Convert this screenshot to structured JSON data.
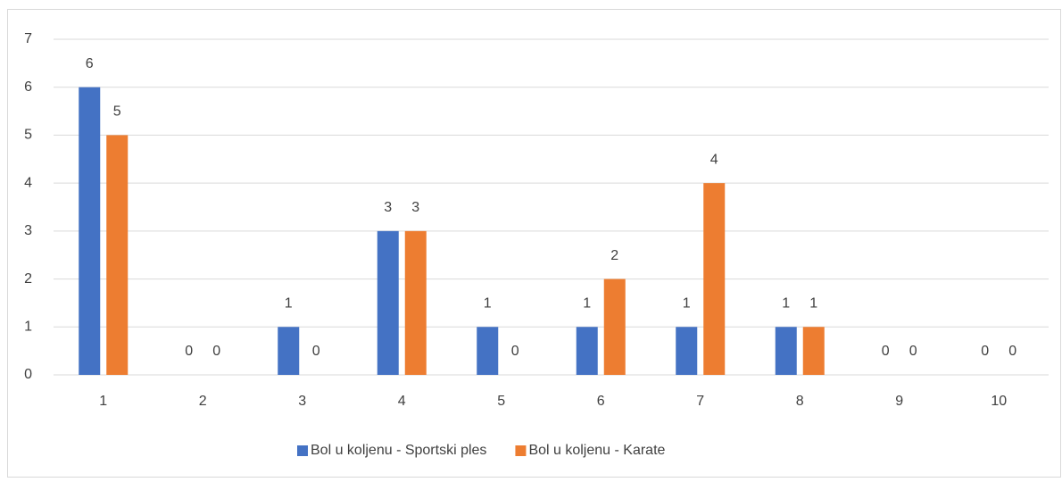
{
  "chart_data": {
    "type": "bar",
    "categories": [
      "1",
      "2",
      "3",
      "4",
      "5",
      "6",
      "7",
      "8",
      "9",
      "10"
    ],
    "series": [
      {
        "name": "Bol u koljenu - Sportski ples",
        "color": "#4472c4",
        "values": [
          6,
          0,
          1,
          3,
          1,
          1,
          1,
          1,
          0,
          0
        ]
      },
      {
        "name": "Bol u koljenu - Karate",
        "color": "#ed7d31",
        "values": [
          5,
          0,
          0,
          3,
          0,
          2,
          4,
          1,
          0,
          0
        ]
      }
    ],
    "ylim": [
      0,
      7
    ],
    "yticks": [
      0,
      1,
      2,
      3,
      4,
      5,
      6,
      7
    ],
    "grid": true,
    "legend": "bottom",
    "data_labels": true
  }
}
